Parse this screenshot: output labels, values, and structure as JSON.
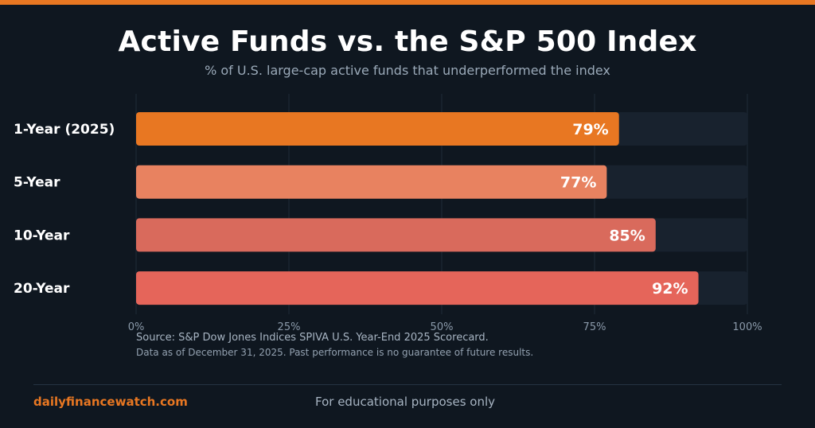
{
  "header": {
    "title": "Active Funds vs. the S&P 500 Index",
    "subtitle": "% of U.S. large-cap active funds that underperformed the index"
  },
  "colors": {
    "background": "#0f1720",
    "accent": "#e87722",
    "track": "#18222e"
  },
  "chart_data": {
    "type": "bar",
    "orientation": "horizontal",
    "title": "Active Funds vs. the S&P 500 Index",
    "subtitle": "% of U.S. large-cap active funds that underperformed the index",
    "categories": [
      "1-Year (2025)",
      "5-Year",
      "10-Year",
      "20-Year"
    ],
    "values": [
      79,
      77,
      85,
      92
    ],
    "data_labels": [
      "79%",
      "77%",
      "85%",
      "92%"
    ],
    "bar_colors": [
      "#e87722",
      "#e88260",
      "#d96a5c",
      "#e5655a"
    ],
    "xlim": [
      0,
      100
    ],
    "x_ticks": [
      0,
      25,
      50,
      75,
      100
    ],
    "x_tick_labels": [
      "0%",
      "25%",
      "50%",
      "75%",
      "100%"
    ],
    "grid": true,
    "legend": "none"
  },
  "source": {
    "line1": "Source: S&P Dow Jones Indices SPIVA U.S. Year-End 2025 Scorecard.",
    "line2": "Data as of December 31, 2025. Past performance is no guarantee of future results."
  },
  "footer": {
    "brand": "dailyfinancewatch.com",
    "disclaimer": "For educational purposes only"
  }
}
